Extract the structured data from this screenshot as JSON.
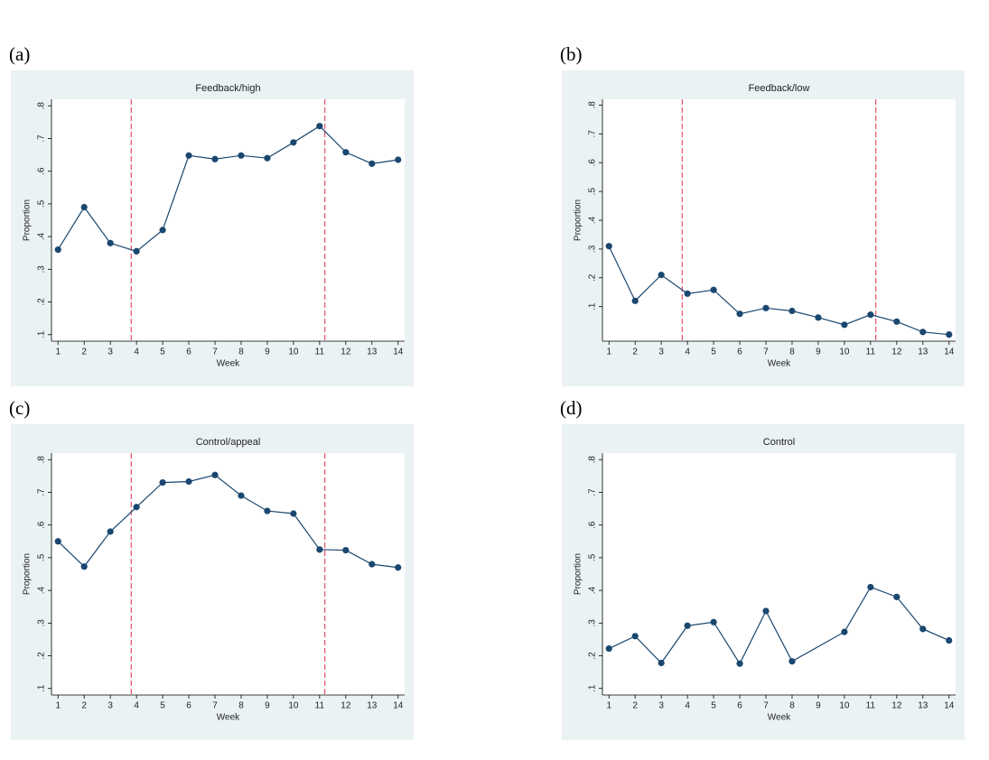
{
  "chart_data": [
    {
      "type": "line",
      "panel": "(a)",
      "title": "Feedback/high",
      "xlabel": "Week",
      "ylabel": "Proportion",
      "x": [
        1,
        2,
        3,
        4,
        5,
        6,
        7,
        8,
        9,
        10,
        11,
        12,
        13,
        14
      ],
      "series": [
        {
          "name": "Proportion",
          "color": "#1a476f",
          "values": [
            0.36,
            0.49,
            0.38,
            0.355,
            0.42,
            0.648,
            0.637,
            0.648,
            0.64,
            0.688,
            0.738,
            0.658,
            0.623,
            0.635
          ]
        }
      ],
      "vlines": [
        3.8,
        11.2
      ],
      "vline_color": "#e8506a",
      "xlim": [
        0.75,
        14.25
      ],
      "xticks": [
        1,
        2,
        3,
        4,
        5,
        6,
        7,
        8,
        9,
        10,
        11,
        12,
        13,
        14
      ],
      "ylim": [
        0.08,
        0.82
      ],
      "yticks": [
        {
          "value": 0.1,
          "label": ".1"
        },
        {
          "value": 0.2,
          "label": ".2"
        },
        {
          "value": 0.3,
          "label": ".3"
        },
        {
          "value": 0.4,
          "label": ".4"
        },
        {
          "value": 0.5,
          "label": ".5"
        },
        {
          "value": 0.6,
          "label": ".6"
        },
        {
          "value": 0.7,
          "label": ".7"
        },
        {
          "value": 0.8,
          "label": ".8"
        }
      ]
    },
    {
      "type": "line",
      "panel": "(b)",
      "title": "Feedback/low",
      "xlabel": "Week",
      "ylabel": "Proportion",
      "x": [
        1,
        2,
        3,
        4,
        5,
        6,
        7,
        8,
        9,
        10,
        11,
        12,
        13,
        14
      ],
      "series": [
        {
          "name": "Proportion",
          "color": "#1a476f",
          "values": [
            0.31,
            0.12,
            0.21,
            0.145,
            0.158,
            0.075,
            0.095,
            0.085,
            0.062,
            0.037,
            0.072,
            0.048,
            0.012,
            0.003
          ]
        }
      ],
      "vlines": [
        3.8,
        11.2
      ],
      "vline_color": "#e8506a",
      "xlim": [
        0.75,
        14.25
      ],
      "xticks": [
        1,
        2,
        3,
        4,
        5,
        6,
        7,
        8,
        9,
        10,
        11,
        12,
        13,
        14
      ],
      "ylim": [
        -0.02,
        0.82
      ],
      "yticks": [
        {
          "value": 0.1,
          "label": ".1"
        },
        {
          "value": 0.2,
          "label": ".2"
        },
        {
          "value": 0.3,
          "label": ".3"
        },
        {
          "value": 0.4,
          "label": ".4"
        },
        {
          "value": 0.5,
          "label": ".5"
        },
        {
          "value": 0.6,
          "label": ".6"
        },
        {
          "value": 0.7,
          "label": ".7"
        },
        {
          "value": 0.8,
          "label": ".8"
        }
      ]
    },
    {
      "type": "line",
      "panel": "(c)",
      "title": "Control/appeal",
      "xlabel": "Week",
      "ylabel": "Proportion",
      "x": [
        1,
        2,
        3,
        4,
        5,
        6,
        7,
        8,
        9,
        10,
        11,
        12,
        13,
        14
      ],
      "series": [
        {
          "name": "Proportion",
          "color": "#1a476f",
          "values": [
            0.55,
            0.473,
            0.58,
            0.655,
            0.73,
            0.733,
            0.753,
            0.69,
            0.643,
            0.635,
            0.525,
            0.523,
            0.48,
            0.47
          ]
        }
      ],
      "vlines": [
        3.8,
        11.2
      ],
      "vline_color": "#e8506a",
      "xlim": [
        0.75,
        14.25
      ],
      "xticks": [
        1,
        2,
        3,
        4,
        5,
        6,
        7,
        8,
        9,
        10,
        11,
        12,
        13,
        14
      ],
      "ylim": [
        0.08,
        0.82
      ],
      "yticks": [
        {
          "value": 0.1,
          "label": ".1"
        },
        {
          "value": 0.2,
          "label": ".2"
        },
        {
          "value": 0.3,
          "label": ".3"
        },
        {
          "value": 0.4,
          "label": ".4"
        },
        {
          "value": 0.5,
          "label": ".5"
        },
        {
          "value": 0.6,
          "label": ".6"
        },
        {
          "value": 0.7,
          "label": ".7"
        },
        {
          "value": 0.8,
          "label": ".8"
        }
      ]
    },
    {
      "type": "line",
      "panel": "(d)",
      "title": "Control",
      "xlabel": "Week",
      "ylabel": "Proportion",
      "x": [
        1,
        2,
        3,
        4,
        5,
        6,
        7,
        8,
        10,
        11,
        12,
        13,
        14
      ],
      "series": [
        {
          "name": "Proportion",
          "color": "#1a476f",
          "values": [
            0.222,
            0.26,
            0.178,
            0.292,
            0.303,
            0.176,
            0.337,
            0.183,
            0.273,
            0.41,
            0.38,
            0.282,
            0.247
          ]
        }
      ],
      "xlim": [
        0.75,
        14.25
      ],
      "xticks": [
        1,
        2,
        3,
        4,
        5,
        6,
        7,
        8,
        9,
        10,
        11,
        12,
        13,
        14
      ],
      "ylim": [
        0.08,
        0.82
      ],
      "yticks": [
        {
          "value": 0.1,
          "label": ".1"
        },
        {
          "value": 0.2,
          "label": ".2"
        },
        {
          "value": 0.3,
          "label": ".3"
        },
        {
          "value": 0.4,
          "label": ".4"
        },
        {
          "value": 0.5,
          "label": ".5"
        },
        {
          "value": 0.6,
          "label": ".6"
        },
        {
          "value": 0.7,
          "label": ".7"
        },
        {
          "value": 0.8,
          "label": ".8"
        }
      ]
    }
  ]
}
